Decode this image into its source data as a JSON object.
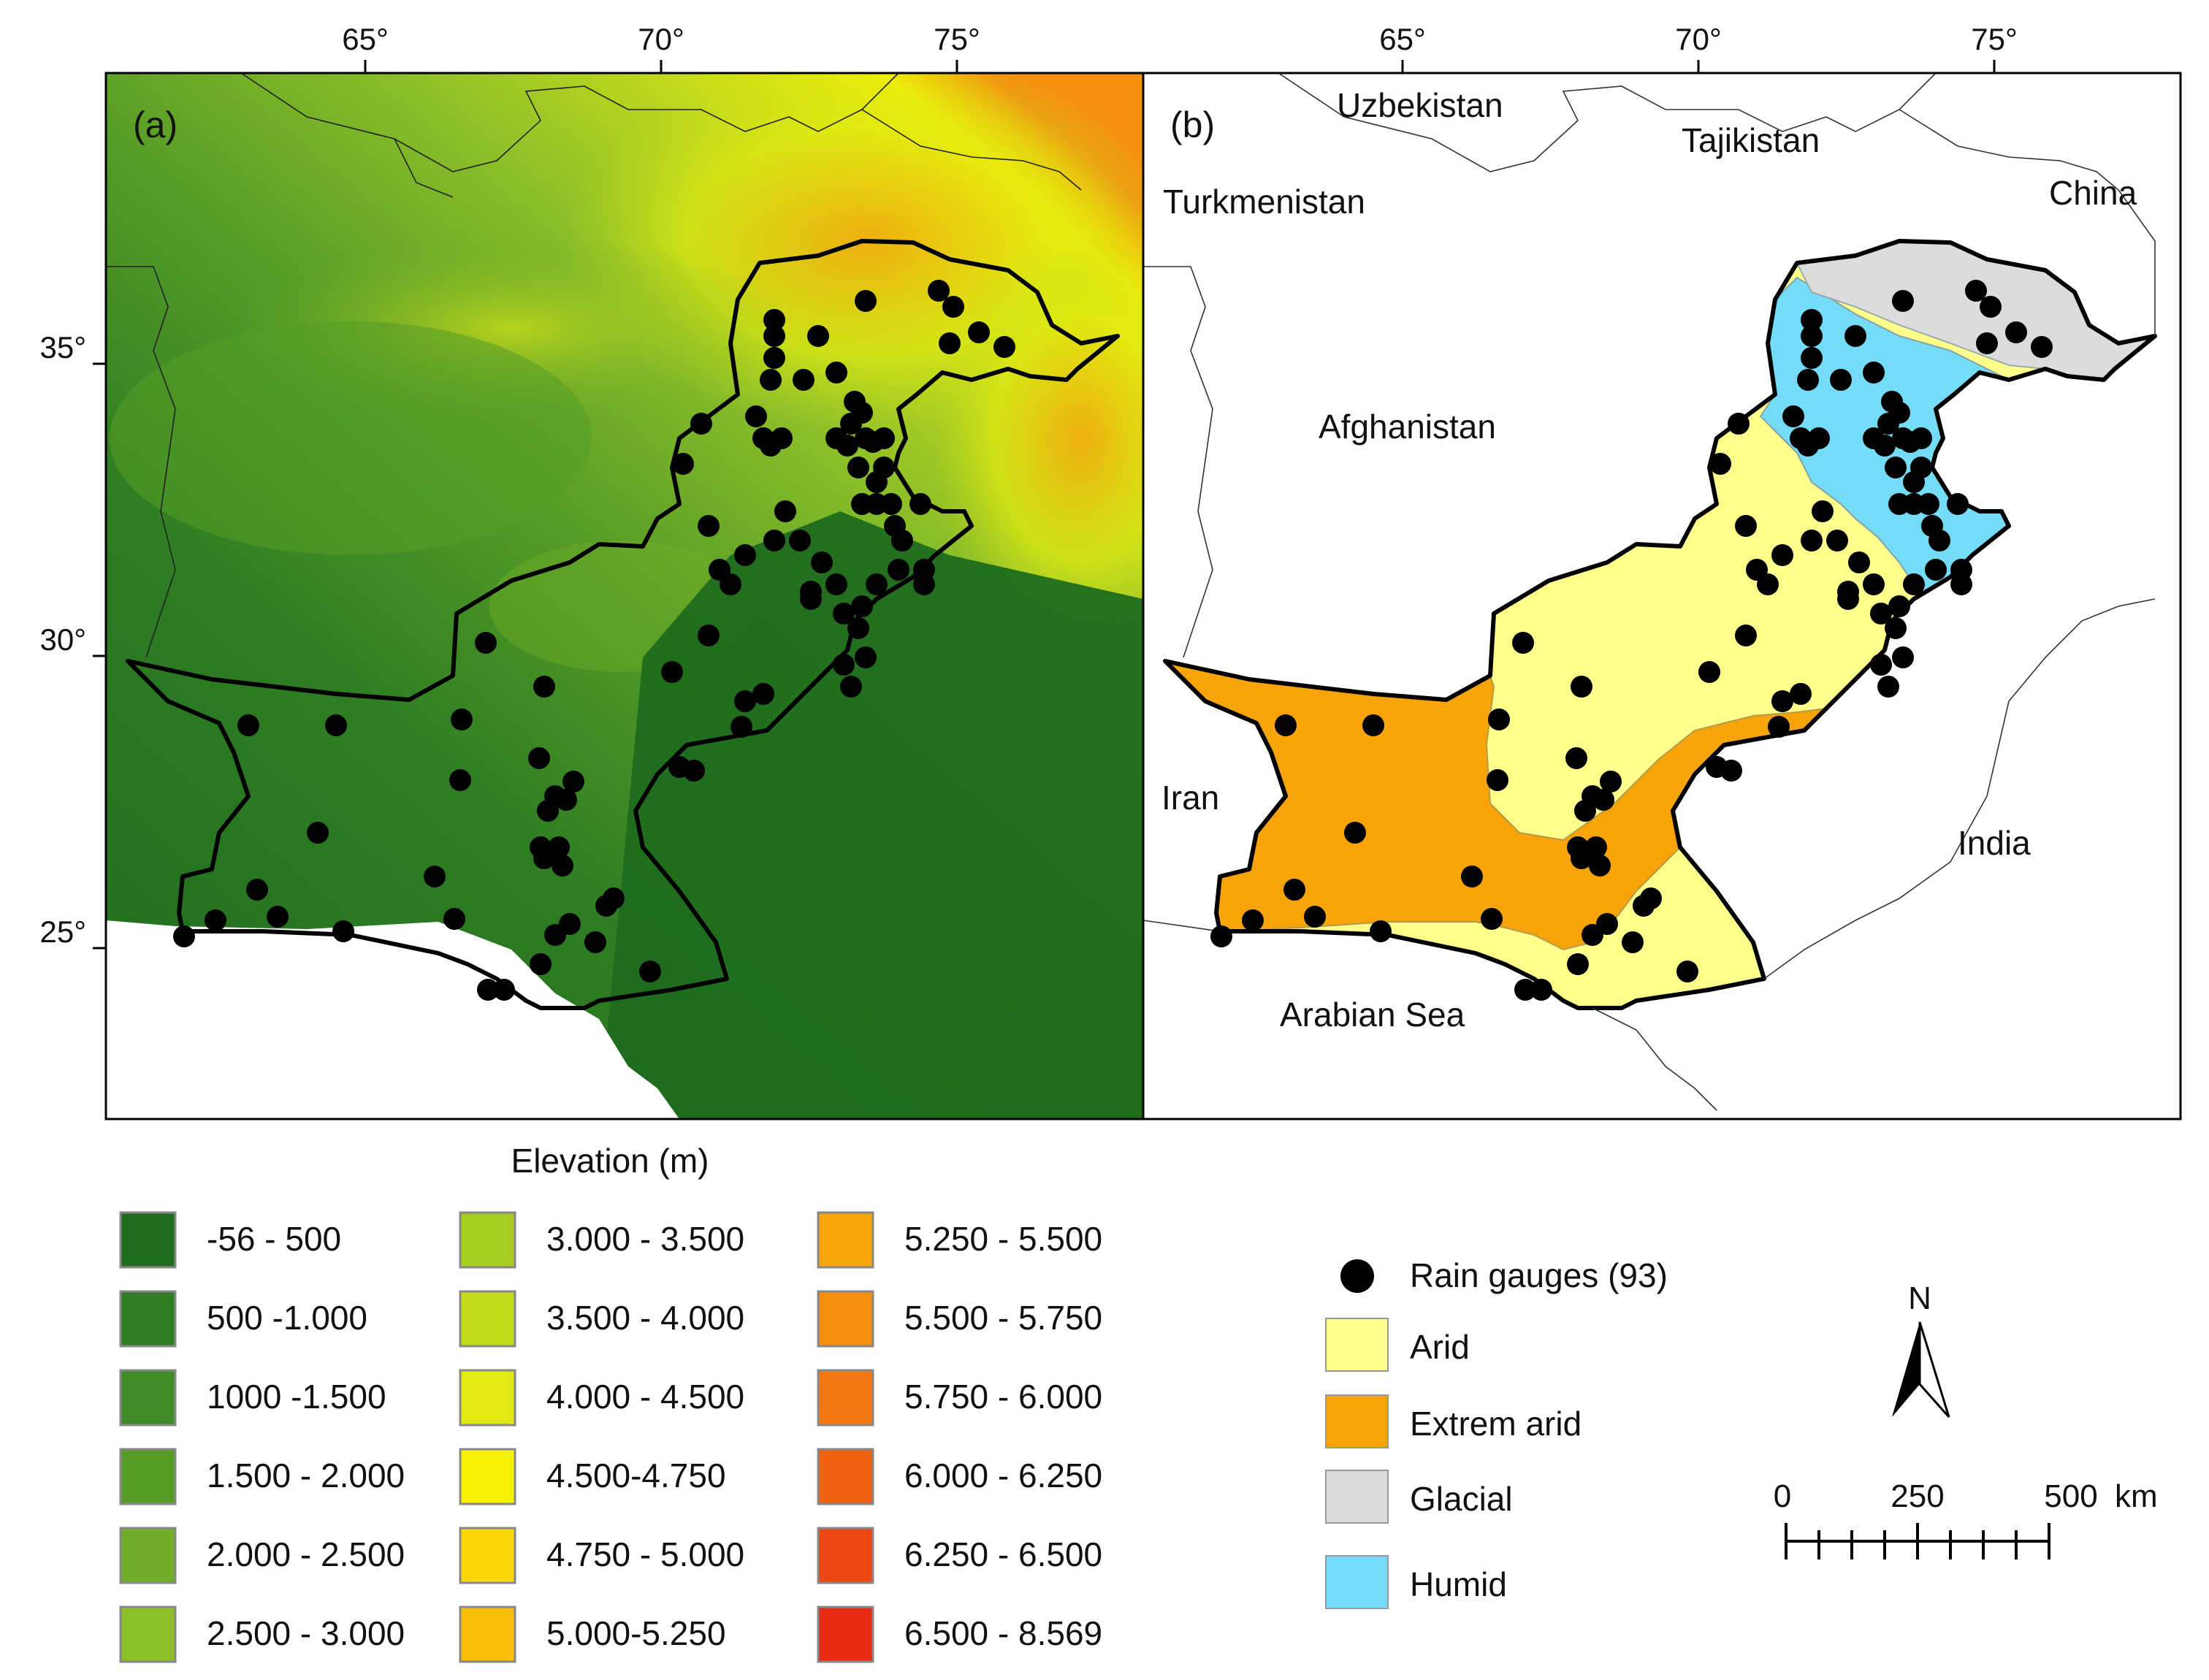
{
  "map_a": {
    "panel_label": "(a)",
    "lon_ticks": [
      "65°",
      "70°",
      "75°"
    ],
    "lat_ticks": [
      "35°",
      "30°",
      "25°"
    ]
  },
  "map_b": {
    "panel_label": "(b)",
    "lon_ticks": [
      "65°",
      "70°",
      "75°"
    ],
    "place_labels": {
      "uzbekistan": "Uzbekistan",
      "tajikistan": "Tajikistan",
      "turkmenistan": "Turkmenistan",
      "china": "China",
      "afghanistan": "Afghanistan",
      "iran": "Iran",
      "india": "India",
      "arabian_sea": "Arabian Sea"
    }
  },
  "elevation_legend": {
    "title": "Elevation (m)",
    "classes": [
      {
        "label": "-56 - 500",
        "color": "#1f6b1f"
      },
      {
        "label": "500 -1.000",
        "color": "#2e7d23"
      },
      {
        "label": "1000 -1.500",
        "color": "#3f8c26"
      },
      {
        "label": "1.500 - 2.000",
        "color": "#569c27"
      },
      {
        "label": "2.000 - 2.500",
        "color": "#70ad28"
      },
      {
        "label": "2.500 - 3.000",
        "color": "#8cbf29"
      },
      {
        "label": "3.000 - 3.500",
        "color": "#a7cc22"
      },
      {
        "label": "3.500 - 4.000",
        "color": "#c4da1c"
      },
      {
        "label": "4.000 - 4.500",
        "color": "#e0ea12"
      },
      {
        "label": "4.500-4.750",
        "color": "#f7f205"
      },
      {
        "label": "4.750 - 5.000",
        "color": "#fbd708"
      },
      {
        "label": "5.000-5.250",
        "color": "#f9be0a"
      },
      {
        "label": "5.250 - 5.500",
        "color": "#f7a70c"
      },
      {
        "label": "5.500 - 5.750",
        "color": "#f5900f"
      },
      {
        "label": "5.750 - 6.000",
        "color": "#f27811"
      },
      {
        "label": "6.000 - 6.250",
        "color": "#ef6012"
      },
      {
        "label": "6.250 - 6.500",
        "color": "#ec4713"
      },
      {
        "label": "6.500 - 8.569",
        "color": "#e62a14"
      }
    ]
  },
  "climate_legend": {
    "items": [
      {
        "label": "Rain gauges (93)",
        "symbol": "dot",
        "color": "#000000"
      },
      {
        "label": "Arid",
        "symbol": "box",
        "color": "#ffff8c"
      },
      {
        "label": "Extrem arid",
        "symbol": "box",
        "color": "#f7a30a"
      },
      {
        "label": "Glacial",
        "symbol": "box",
        "color": "#dcdcdc"
      },
      {
        "label": "Humid",
        "symbol": "box",
        "color": "#74dcf6"
      }
    ]
  },
  "north_arrow": {
    "label": "N"
  },
  "scale_bar": {
    "labels": [
      "0",
      "250",
      "500"
    ],
    "unit": "km"
  }
}
